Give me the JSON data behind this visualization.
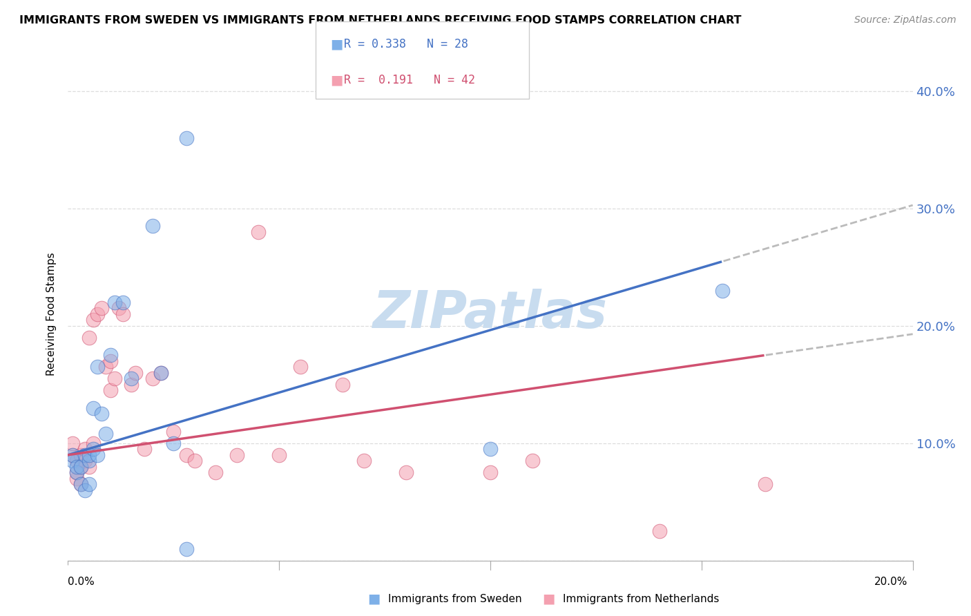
{
  "title": "IMMIGRANTS FROM SWEDEN VS IMMIGRANTS FROM NETHERLANDS RECEIVING FOOD STAMPS CORRELATION CHART",
  "source": "Source: ZipAtlas.com",
  "ylabel": "Receiving Food Stamps",
  "yticks": [
    0.0,
    0.1,
    0.2,
    0.3,
    0.4
  ],
  "ytick_labels": [
    "",
    "10.0%",
    "20.0%",
    "30.0%",
    "40.0%"
  ],
  "xlim": [
    0.0,
    0.2
  ],
  "ylim": [
    0.0,
    0.42
  ],
  "legend_r_sweden": "R = 0.338",
  "legend_n_sweden": "N = 28",
  "legend_r_neth": "R =  0.191",
  "legend_n_neth": "N = 42",
  "color_sweden": "#7EB0E8",
  "color_netherlands": "#F4A0B0",
  "color_trendline_sweden": "#4472C4",
  "color_trendline_neth": "#D05070",
  "color_trendline_ext": "#BBBBBB",
  "watermark_text": "ZIPatlas",
  "watermark_color": "#C8DCEF",
  "sweden_x": [
    0.001,
    0.001,
    0.002,
    0.002,
    0.003,
    0.003,
    0.004,
    0.004,
    0.005,
    0.005,
    0.005,
    0.006,
    0.006,
    0.007,
    0.007,
    0.008,
    0.009,
    0.01,
    0.011,
    0.013,
    0.015,
    0.02,
    0.022,
    0.025,
    0.028,
    0.1,
    0.155,
    0.028
  ],
  "sweden_y": [
    0.085,
    0.09,
    0.075,
    0.08,
    0.065,
    0.08,
    0.06,
    0.09,
    0.065,
    0.085,
    0.09,
    0.095,
    0.13,
    0.09,
    0.165,
    0.125,
    0.108,
    0.175,
    0.22,
    0.22,
    0.155,
    0.285,
    0.16,
    0.1,
    0.36,
    0.095,
    0.23,
    0.01
  ],
  "neth_x": [
    0.001,
    0.001,
    0.002,
    0.002,
    0.002,
    0.003,
    0.003,
    0.003,
    0.004,
    0.004,
    0.005,
    0.005,
    0.006,
    0.006,
    0.007,
    0.008,
    0.009,
    0.01,
    0.01,
    0.011,
    0.012,
    0.013,
    0.015,
    0.016,
    0.018,
    0.02,
    0.022,
    0.025,
    0.028,
    0.03,
    0.035,
    0.04,
    0.045,
    0.05,
    0.055,
    0.065,
    0.07,
    0.08,
    0.1,
    0.11,
    0.14,
    0.165
  ],
  "neth_y": [
    0.09,
    0.1,
    0.07,
    0.075,
    0.085,
    0.065,
    0.08,
    0.09,
    0.085,
    0.095,
    0.08,
    0.19,
    0.1,
    0.205,
    0.21,
    0.215,
    0.165,
    0.145,
    0.17,
    0.155,
    0.215,
    0.21,
    0.15,
    0.16,
    0.095,
    0.155,
    0.16,
    0.11,
    0.09,
    0.085,
    0.075,
    0.09,
    0.28,
    0.09,
    0.165,
    0.15,
    0.085,
    0.075,
    0.075,
    0.085,
    0.025,
    0.065
  ]
}
